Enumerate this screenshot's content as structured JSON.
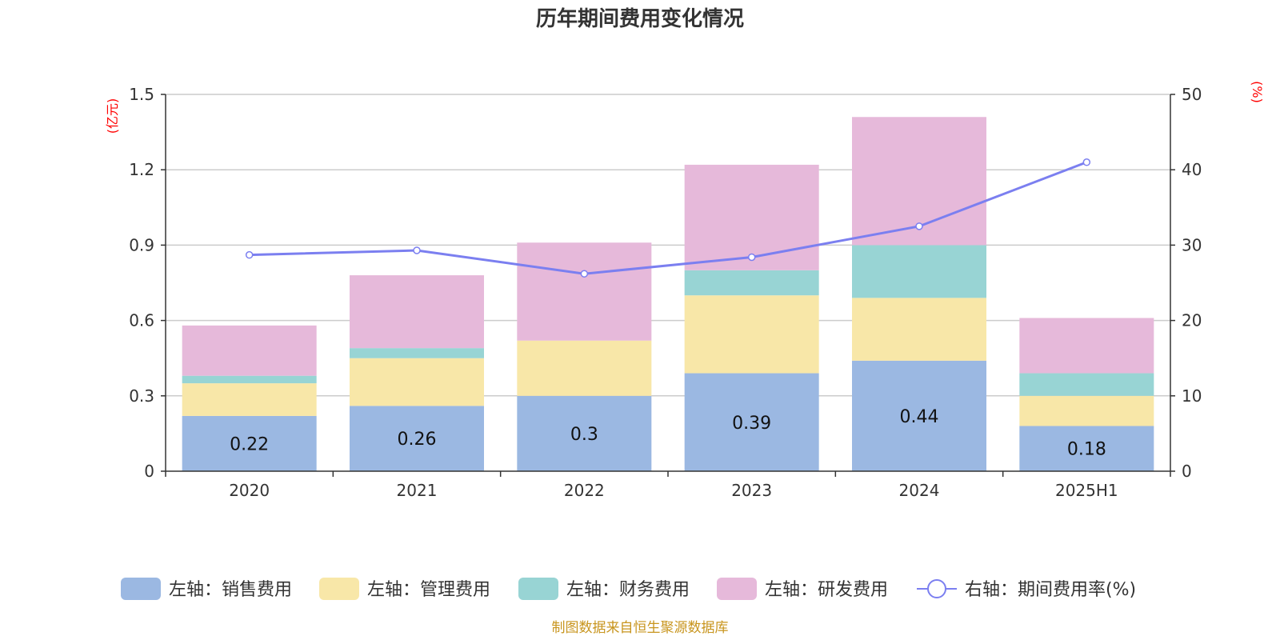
{
  "chart_data": {
    "type": "bar",
    "stacked": true,
    "title": "历年期间费用变化情况",
    "categories": [
      "2020",
      "2021",
      "2022",
      "2023",
      "2024",
      "2025H1"
    ],
    "left_axis": {
      "unit": "(亿元)",
      "ylim": [
        0,
        1.5
      ],
      "ticks": [
        "0",
        "0.3",
        "0.6",
        "0.9",
        "1.2",
        "1.5"
      ]
    },
    "right_axis": {
      "unit": "(%)",
      "ylim": [
        0,
        50
      ],
      "ticks": [
        "0",
        "10",
        "20",
        "30",
        "40",
        "50"
      ]
    },
    "series": [
      {
        "name": "左轴：销售费用",
        "type": "bar",
        "axis": "left",
        "color": "#9bb8e2",
        "values": [
          0.22,
          0.26,
          0.3,
          0.39,
          0.44,
          0.18
        ],
        "labels": [
          "0.22",
          "0.26",
          "0.3",
          "0.39",
          "0.44",
          "0.18"
        ]
      },
      {
        "name": "左轴：管理费用",
        "type": "bar",
        "axis": "left",
        "color": "#f8e7a8",
        "values": [
          0.13,
          0.19,
          0.22,
          0.31,
          0.25,
          0.12
        ]
      },
      {
        "name": "左轴：财务费用",
        "type": "bar",
        "axis": "left",
        "color": "#98d4d4",
        "values": [
          0.03,
          0.04,
          0.0,
          0.1,
          0.21,
          0.09
        ]
      },
      {
        "name": "左轴：研发费用",
        "type": "bar",
        "axis": "left",
        "color": "#e6b9da",
        "values": [
          0.2,
          0.29,
          0.39,
          0.42,
          0.51,
          0.22
        ]
      },
      {
        "name": "右轴：期间费用率(%)",
        "type": "line",
        "axis": "right",
        "color": "#7b7ff0",
        "values": [
          28.7,
          29.3,
          26.2,
          28.4,
          32.5,
          41.0
        ]
      }
    ],
    "grid": true,
    "legend_position": "bottom"
  },
  "source": "制图数据来自恒生聚源数据库"
}
